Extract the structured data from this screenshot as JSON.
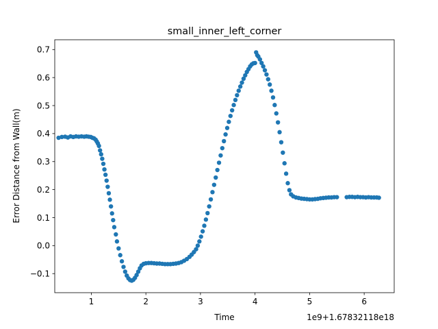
{
  "chart_data": {
    "type": "scatter",
    "title": "small_inner_left_corner",
    "xlabel": "Time",
    "ylabel": "Error Distance from Wall(m)",
    "x_offset_label": "1e9+1.67832118e18",
    "xlim": [
      0.33,
      6.55
    ],
    "ylim": [
      -0.168,
      0.735
    ],
    "x_ticks": [
      {
        "value": 1,
        "label": "1"
      },
      {
        "value": 2,
        "label": "2"
      },
      {
        "value": 3,
        "label": "3"
      },
      {
        "value": 4,
        "label": "4"
      },
      {
        "value": 5,
        "label": "5"
      },
      {
        "value": 6,
        "label": "6"
      }
    ],
    "y_ticks": [
      {
        "value": -0.1,
        "label": "−0.1"
      },
      {
        "value": 0.0,
        "label": "0.0"
      },
      {
        "value": 0.1,
        "label": "0.1"
      },
      {
        "value": 0.2,
        "label": "0.2"
      },
      {
        "value": 0.3,
        "label": "0.3"
      },
      {
        "value": 0.4,
        "label": "0.4"
      },
      {
        "value": 0.5,
        "label": "0.5"
      },
      {
        "value": 0.6,
        "label": "0.6"
      },
      {
        "value": 0.7,
        "label": "0.7"
      }
    ],
    "grid": false,
    "legend": "none",
    "marker_color": "#1f77b4",
    "series": [
      {
        "points": [
          [
            0.4,
            0.385
          ],
          [
            0.46,
            0.388
          ],
          [
            0.52,
            0.389
          ],
          [
            0.57,
            0.386
          ],
          [
            0.62,
            0.39
          ],
          [
            0.67,
            0.388
          ],
          [
            0.72,
            0.39
          ],
          [
            0.77,
            0.389
          ],
          [
            0.82,
            0.39
          ],
          [
            0.87,
            0.389
          ],
          [
            0.91,
            0.39
          ],
          [
            0.95,
            0.389
          ],
          [
            0.99,
            0.388
          ],
          [
            1.02,
            0.385
          ],
          [
            1.05,
            0.383
          ],
          [
            1.08,
            0.378
          ],
          [
            1.1,
            0.372
          ],
          [
            1.12,
            0.365
          ],
          [
            1.14,
            0.356
          ],
          [
            1.16,
            0.34
          ],
          [
            1.18,
            0.326
          ],
          [
            1.2,
            0.31
          ],
          [
            1.22,
            0.292
          ],
          [
            1.24,
            0.272
          ],
          [
            1.26,
            0.253
          ],
          [
            1.28,
            0.232
          ],
          [
            1.3,
            0.21
          ],
          [
            1.32,
            0.187
          ],
          [
            1.34,
            0.164
          ],
          [
            1.36,
            0.14
          ],
          [
            1.38,
            0.115
          ],
          [
            1.4,
            0.091
          ],
          [
            1.42,
            0.066
          ],
          [
            1.45,
            0.04
          ],
          [
            1.47,
            0.015
          ],
          [
            1.5,
            -0.01
          ],
          [
            1.53,
            -0.034
          ],
          [
            1.56,
            -0.056
          ],
          [
            1.59,
            -0.076
          ],
          [
            1.62,
            -0.093
          ],
          [
            1.65,
            -0.107
          ],
          [
            1.68,
            -0.117
          ],
          [
            1.71,
            -0.123
          ],
          [
            1.74,
            -0.125
          ],
          [
            1.77,
            -0.122
          ],
          [
            1.8,
            -0.115
          ],
          [
            1.83,
            -0.105
          ],
          [
            1.86,
            -0.093
          ],
          [
            1.89,
            -0.081
          ],
          [
            1.92,
            -0.071
          ],
          [
            1.96,
            -0.065
          ],
          [
            2.0,
            -0.063
          ],
          [
            2.05,
            -0.062
          ],
          [
            2.1,
            -0.062
          ],
          [
            2.15,
            -0.063
          ],
          [
            2.2,
            -0.064
          ],
          [
            2.25,
            -0.064
          ],
          [
            2.3,
            -0.065
          ],
          [
            2.35,
            -0.066
          ],
          [
            2.4,
            -0.066
          ],
          [
            2.45,
            -0.066
          ],
          [
            2.5,
            -0.065
          ],
          [
            2.55,
            -0.064
          ],
          [
            2.6,
            -0.062
          ],
          [
            2.65,
            -0.059
          ],
          [
            2.7,
            -0.054
          ],
          [
            2.75,
            -0.048
          ],
          [
            2.8,
            -0.04
          ],
          [
            2.84,
            -0.032
          ],
          [
            2.88,
            -0.023
          ],
          [
            2.92,
            -0.013
          ],
          [
            2.95,
            0.0
          ],
          [
            2.98,
            0.015
          ],
          [
            3.01,
            0.032
          ],
          [
            3.04,
            0.051
          ],
          [
            3.07,
            0.071
          ],
          [
            3.1,
            0.093
          ],
          [
            3.13,
            0.116
          ],
          [
            3.16,
            0.14
          ],
          [
            3.19,
            0.165
          ],
          [
            3.22,
            0.191
          ],
          [
            3.25,
            0.217
          ],
          [
            3.28,
            0.243
          ],
          [
            3.31,
            0.27
          ],
          [
            3.34,
            0.296
          ],
          [
            3.37,
            0.322
          ],
          [
            3.4,
            0.348
          ],
          [
            3.43,
            0.373
          ],
          [
            3.46,
            0.397
          ],
          [
            3.49,
            0.42
          ],
          [
            3.52,
            0.442
          ],
          [
            3.55,
            0.463
          ],
          [
            3.58,
            0.483
          ],
          [
            3.61,
            0.502
          ],
          [
            3.64,
            0.52
          ],
          [
            3.67,
            0.537
          ],
          [
            3.7,
            0.553
          ],
          [
            3.73,
            0.568
          ],
          [
            3.76,
            0.582
          ],
          [
            3.79,
            0.596
          ],
          [
            3.82,
            0.608
          ],
          [
            3.85,
            0.62
          ],
          [
            3.88,
            0.63
          ],
          [
            3.91,
            0.64
          ],
          [
            3.94,
            0.647
          ],
          [
            3.97,
            0.651
          ],
          [
            4.0,
            0.652
          ],
          [
            4.02,
            0.69
          ],
          [
            4.04,
            0.68
          ],
          [
            4.06,
            0.675
          ],
          [
            4.09,
            0.665
          ],
          [
            4.12,
            0.652
          ],
          [
            4.15,
            0.64
          ],
          [
            4.18,
            0.626
          ],
          [
            4.21,
            0.611
          ],
          [
            4.24,
            0.594
          ],
          [
            4.27,
            0.575
          ],
          [
            4.3,
            0.553
          ],
          [
            4.33,
            0.529
          ],
          [
            4.36,
            0.502
          ],
          [
            4.39,
            0.472
          ],
          [
            4.42,
            0.44
          ],
          [
            4.45,
            0.405
          ],
          [
            4.48,
            0.369
          ],
          [
            4.51,
            0.332
          ],
          [
            4.54,
            0.294
          ],
          [
            4.57,
            0.257
          ],
          [
            4.6,
            0.223
          ],
          [
            4.63,
            0.198
          ],
          [
            4.66,
            0.183
          ],
          [
            4.7,
            0.176
          ],
          [
            4.75,
            0.172
          ],
          [
            4.8,
            0.17
          ],
          [
            4.85,
            0.168
          ],
          [
            4.9,
            0.167
          ],
          [
            4.95,
            0.166
          ],
          [
            5.0,
            0.165
          ],
          [
            5.05,
            0.165
          ],
          [
            5.1,
            0.166
          ],
          [
            5.15,
            0.167
          ],
          [
            5.2,
            0.169
          ],
          [
            5.25,
            0.17
          ],
          [
            5.3,
            0.171
          ],
          [
            5.35,
            0.172
          ],
          [
            5.4,
            0.172
          ],
          [
            5.45,
            0.173
          ],
          [
            5.5,
            0.173
          ],
          [
            5.68,
            0.173
          ],
          [
            5.73,
            0.174
          ],
          [
            5.78,
            0.174
          ],
          [
            5.83,
            0.173
          ],
          [
            5.88,
            0.174
          ],
          [
            5.93,
            0.173
          ],
          [
            5.98,
            0.173
          ],
          [
            6.03,
            0.172
          ],
          [
            6.08,
            0.173
          ],
          [
            6.13,
            0.172
          ],
          [
            6.18,
            0.172
          ],
          [
            6.23,
            0.172
          ],
          [
            6.27,
            0.171
          ]
        ]
      }
    ]
  }
}
